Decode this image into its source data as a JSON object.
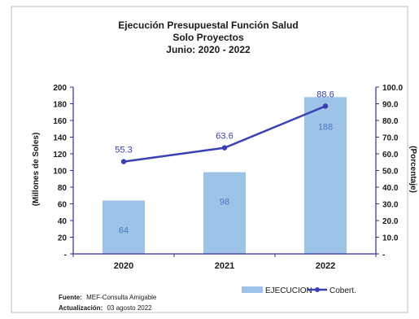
{
  "colors": {
    "bar": "#9DC3E6",
    "line": "#3A3FB4",
    "bar_label": "#4A78C8",
    "line_label": "#3A40A8",
    "text": "#1a1a1a",
    "frame": "#bdbdbd"
  },
  "footer": {
    "source_label": "Fuente:",
    "source_text": "MEF-Consulta Amigable",
    "update_label": "Actualización:",
    "update_text": "03 agosto 2022"
  },
  "chart_data": {
    "type": "bar",
    "title_lines": [
      "Ejecución Presupuestal Función Salud",
      "Solo Proyectos",
      "Junio: 2020 - 2022"
    ],
    "categories": [
      "2020",
      "2021",
      "2022"
    ],
    "series": [
      {
        "name": "EJECUCION",
        "type": "bar",
        "axis": "left",
        "values": [
          64,
          98,
          188
        ]
      },
      {
        "name": "Cobert.",
        "type": "line",
        "axis": "right",
        "values": [
          55.3,
          63.6,
          88.6
        ]
      }
    ],
    "bar_labels": [
      "64",
      "98",
      "188"
    ],
    "line_labels": [
      "55.3",
      "63.6",
      "88.6"
    ],
    "ylabel": "(Millones de Soles)",
    "y2label": "(Porcentaje)",
    "ylim": [
      0,
      200
    ],
    "y2lim": [
      0,
      100
    ],
    "y_ticks": [
      "-",
      "20",
      "40",
      "60",
      "80",
      "100",
      "120",
      "140",
      "160",
      "180",
      "200"
    ],
    "y2_ticks": [
      "-",
      "10.0",
      "20.0",
      "30.0",
      "40.0",
      "50.0",
      "60.0",
      "70.0",
      "80.0",
      "90.0",
      "100.0"
    ],
    "grid": false,
    "legend_position": "bottom-right"
  }
}
